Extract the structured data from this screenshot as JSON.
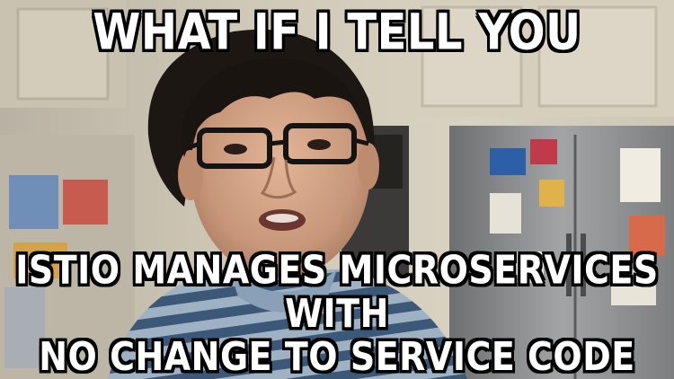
{
  "meme": {
    "top_text": "WHAT IF I TELL YOU",
    "bottom_line_1": "ISTIO MANAGES MICROSERVICES WITH",
    "bottom_line_2": "NO CHANGE TO SERVICE CODE"
  },
  "colors": {
    "caption_fill": "#ffffff",
    "caption_outline": "#000000"
  }
}
